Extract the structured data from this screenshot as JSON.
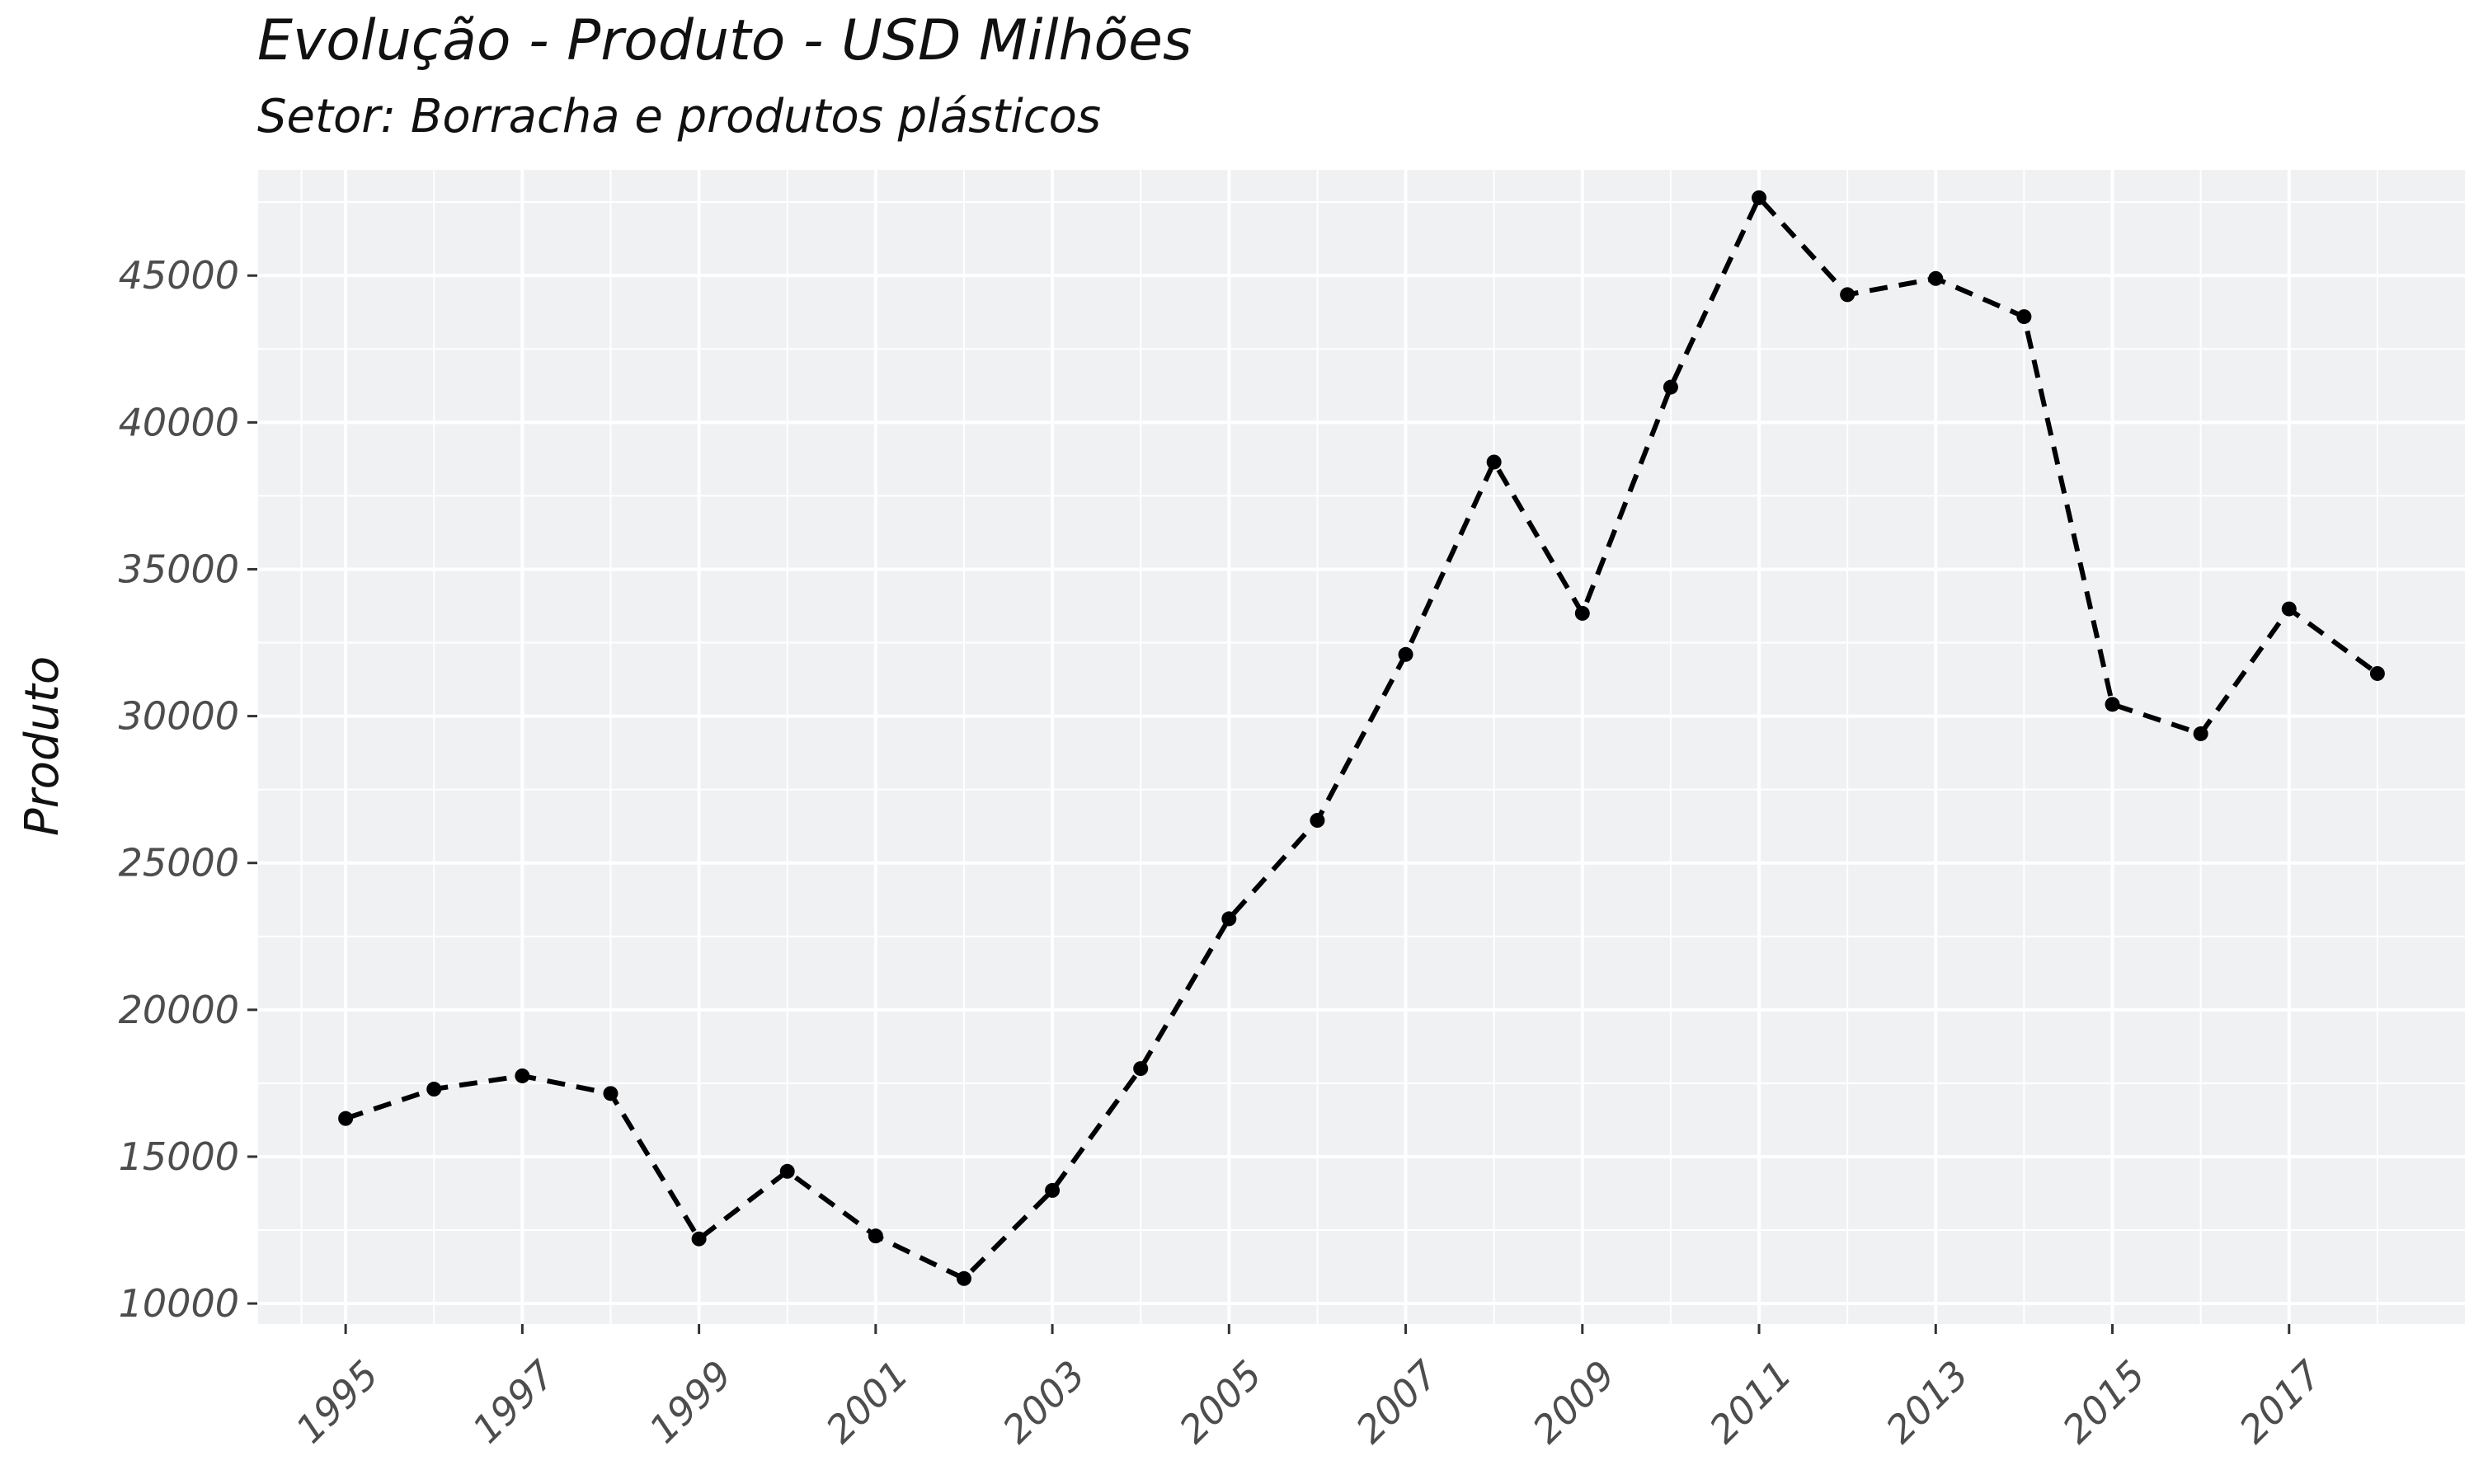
{
  "chart_data": {
    "type": "line",
    "title": "Evolução - Produto - USD Milhões",
    "subtitle": "Setor: Borracha e produtos plásticos",
    "xlabel": "",
    "ylabel": "Produto",
    "x": [
      1995,
      1996,
      1997,
      1998,
      1999,
      2000,
      2001,
      2002,
      2003,
      2004,
      2005,
      2006,
      2007,
      2008,
      2009,
      2010,
      2011,
      2012,
      2013,
      2014,
      2015,
      2016,
      2017,
      2018
    ],
    "series": [
      {
        "values": [
          16300,
          17300,
          17750,
          17150,
          12200,
          14500,
          12300,
          10850,
          13850,
          18000,
          23100,
          26450,
          32100,
          38650,
          33500,
          41200,
          47650,
          44350,
          44900,
          43600,
          30400,
          29400,
          33650,
          31450
        ],
        "line_style": "dashed",
        "color": "#000000"
      }
    ],
    "xlim": [
      1994.0,
      2019.0
    ],
    "ylim": [
      9300,
      48600
    ],
    "x_ticks": [
      "1995",
      "1997",
      "1999",
      "2001",
      "2003",
      "2005",
      "2007",
      "2009",
      "2011",
      "2013",
      "2015",
      "2017"
    ],
    "y_ticks": [
      "10000",
      "15000",
      "20000",
      "25000",
      "30000",
      "35000",
      "40000",
      "45000"
    ],
    "grid": true,
    "panel_color": "#f0f1f3",
    "grid_color": "#ffffff"
  }
}
